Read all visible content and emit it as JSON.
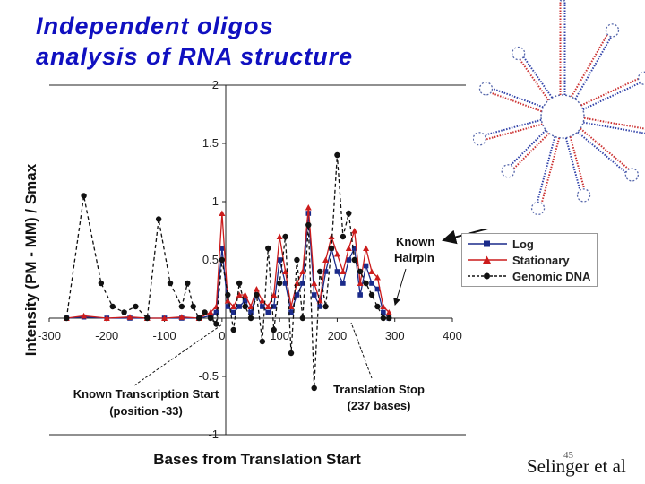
{
  "slide": {
    "title_line1": "Independent oligos",
    "title_line2": "analysis of RNA structure",
    "credit": "Selinger et al",
    "slide_number": "45"
  },
  "annotations": {
    "known_hairpin_line1": "Known",
    "known_hairpin_line2": "Hairpin",
    "transcription_start_line1": "Known Transcription Start",
    "transcription_start_line2": "(position -33)",
    "translation_stop_line1": "Translation Stop",
    "translation_stop_line2": "(237 bases)"
  },
  "colors": {
    "title": "#1010c0",
    "log": "#1a2a8a",
    "stationary": "#cc1c1c",
    "genomic": "#111111"
  },
  "inset_image": {
    "description_icon": "rna-secondary-structure-diagram"
  },
  "chart_data": {
    "type": "line",
    "xlabel": "Bases from Translation Start",
    "ylabel": "Intensity (PM - MM) / Smax",
    "xlim": [
      -300,
      400
    ],
    "ylim": [
      -1,
      2
    ],
    "x_ticks": [
      "-300",
      "-200",
      "-100",
      "0",
      "100",
      "200",
      "300",
      "400"
    ],
    "y_ticks": [
      "2",
      "1.5",
      "1",
      "0.5",
      "0",
      "-0.5",
      "-1"
    ],
    "legend": {
      "position": "right",
      "entries": [
        "Log",
        "Stationary",
        "Genomic DNA"
      ]
    },
    "series": [
      {
        "name": "Log",
        "color": "#1a2a8a",
        "marker": "square",
        "x": [
          -270,
          -240,
          -200,
          -160,
          -130,
          -100,
          -70,
          -40,
          -20,
          -10,
          0,
          10,
          20,
          30,
          40,
          50,
          60,
          70,
          80,
          90,
          100,
          110,
          120,
          130,
          140,
          150,
          160,
          170,
          180,
          190,
          200,
          210,
          220,
          230,
          240,
          250,
          260,
          270,
          280,
          290
        ],
        "y": [
          0.0,
          0.01,
          0.0,
          0.0,
          0.0,
          0.0,
          0.0,
          0.0,
          0.02,
          0.05,
          0.6,
          0.1,
          0.05,
          0.1,
          0.15,
          0.05,
          0.2,
          0.1,
          0.05,
          0.1,
          0.5,
          0.3,
          0.05,
          0.2,
          0.3,
          0.9,
          0.2,
          0.1,
          0.4,
          0.6,
          0.4,
          0.3,
          0.5,
          0.6,
          0.2,
          0.45,
          0.3,
          0.25,
          0.05,
          0.0
        ]
      },
      {
        "name": "Stationary",
        "color": "#cc1c1c",
        "marker": "triangle",
        "x": [
          -270,
          -240,
          -200,
          -160,
          -130,
          -100,
          -70,
          -40,
          -20,
          -10,
          0,
          10,
          20,
          30,
          40,
          50,
          60,
          70,
          80,
          90,
          100,
          110,
          120,
          130,
          140,
          150,
          160,
          170,
          180,
          190,
          200,
          210,
          220,
          230,
          240,
          250,
          260,
          270,
          280,
          290
        ],
        "y": [
          0.0,
          0.02,
          0.0,
          0.01,
          0.0,
          0.0,
          0.01,
          0.0,
          0.05,
          0.1,
          0.9,
          0.15,
          0.1,
          0.2,
          0.2,
          0.1,
          0.25,
          0.15,
          0.1,
          0.2,
          0.7,
          0.4,
          0.1,
          0.3,
          0.4,
          0.95,
          0.3,
          0.15,
          0.5,
          0.7,
          0.55,
          0.4,
          0.6,
          0.75,
          0.3,
          0.6,
          0.4,
          0.35,
          0.1,
          0.05
        ]
      },
      {
        "name": "Genomic DNA",
        "color": "#111111",
        "marker": "circle",
        "x": [
          -270,
          -240,
          -210,
          -190,
          -170,
          -150,
          -130,
          -110,
          -90,
          -70,
          -60,
          -50,
          -40,
          -30,
          -20,
          -10,
          0,
          10,
          20,
          30,
          40,
          50,
          60,
          70,
          80,
          90,
          100,
          110,
          120,
          130,
          140,
          150,
          160,
          170,
          180,
          190,
          200,
          210,
          220,
          230,
          240,
          250,
          260,
          270,
          280,
          290
        ],
        "y": [
          0.0,
          1.05,
          0.3,
          0.1,
          0.05,
          0.1,
          0.0,
          0.85,
          0.3,
          0.1,
          0.3,
          0.1,
          0.0,
          0.05,
          0.0,
          -0.05,
          0.5,
          0.2,
          -0.1,
          0.3,
          0.1,
          0.0,
          0.2,
          -0.2,
          0.6,
          -0.1,
          0.3,
          0.7,
          -0.3,
          0.5,
          0.0,
          0.8,
          -0.6,
          0.4,
          0.1,
          0.6,
          1.4,
          0.7,
          0.9,
          0.5,
          0.4,
          0.3,
          0.2,
          0.1,
          0.0,
          0.0
        ]
      }
    ]
  }
}
